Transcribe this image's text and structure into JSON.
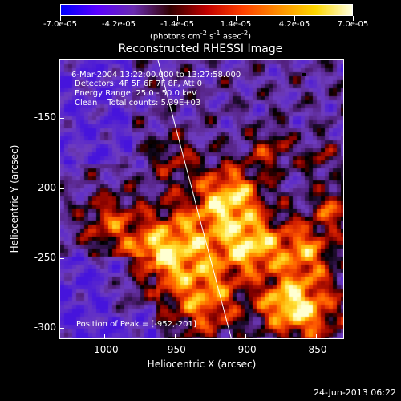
{
  "colorbar": {
    "ticks": [
      "-7.0e-05",
      "-4.2e-05",
      "-1.4e-05",
      "1.4e-05",
      "4.2e-05",
      "7.0e-05"
    ],
    "units_html": "(photons cm<sup>-2</sup> s<sup>-1</sup> asec<sup>-2</sup>)",
    "colormap": [
      "#0000ff",
      "#5a00ff",
      "#6a2cb0",
      "#300000",
      "#c00000",
      "#ff4000",
      "#ff9000",
      "#ffd800",
      "#ffffe0"
    ]
  },
  "title": "Reconstructed RHESSI Image",
  "annotations": {
    "time": "6-Mar-2004 13:22:00.000 to 13:27:58.000",
    "detectors": "Detectors: 4F 5F 6F 7F 8F, Att 0",
    "energy": "Energy Range: 25.0 - 50.0 keV",
    "clean": "Clean    Total counts: 5.39E+03",
    "peak": "Position of Peak = [-952,-201]"
  },
  "axes": {
    "xlabel": "Heliocentric X (arcsec)",
    "ylabel": "Heliocentric Y (arcsec)",
    "xticks": [
      "-1000",
      "-950",
      "-900",
      "-850"
    ],
    "yticks": [
      "-150",
      "-200",
      "-250",
      "-300"
    ],
    "xlim": [
      -1032,
      -830
    ],
    "ylim": [
      -308,
      -108
    ]
  },
  "footer_date": "24-Jun-2013 06:22"
}
